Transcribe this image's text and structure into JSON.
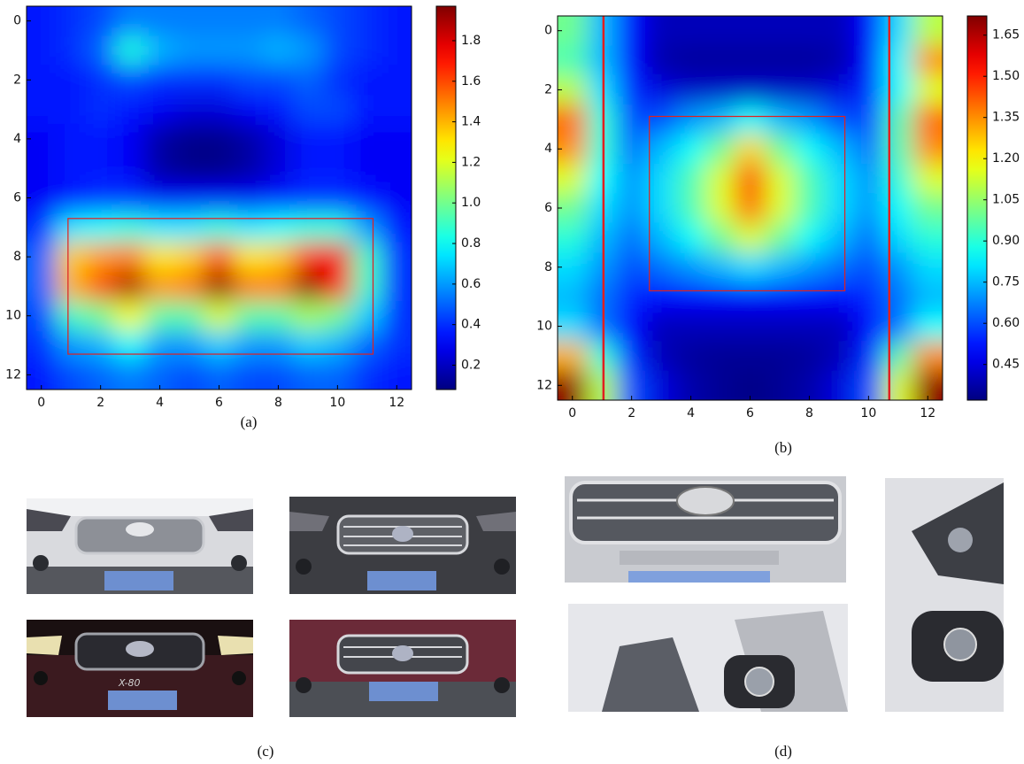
{
  "chart_data": [
    {
      "type": "heatmap",
      "xlim": [
        -0.5,
        12.5
      ],
      "ylim": [
        12.5,
        -0.5
      ],
      "xticks": [
        0,
        2,
        4,
        6,
        8,
        10,
        12
      ],
      "yticks": [
        0,
        2,
        4,
        6,
        8,
        10,
        12
      ],
      "clim": [
        0.08,
        1.97
      ],
      "cticks": [
        0.2,
        0.4,
        0.6,
        0.8,
        {
          "value": 1,
          "label": "1.0"
        },
        1.2,
        1.4,
        1.6,
        1.8
      ],
      "colormap": "jet",
      "annotation_color": "#e02020",
      "boxes": [
        {
          "x": [
            0.9,
            11.2
          ],
          "y": [
            6.7,
            11.3
          ]
        }
      ],
      "lines_x": [],
      "values": [
        [
          0.35,
          0.4,
          0.45,
          0.55,
          0.55,
          0.55,
          0.55,
          0.55,
          0.55,
          0.5,
          0.45,
          0.4,
          0.35
        ],
        [
          0.35,
          0.4,
          0.5,
          0.85,
          0.65,
          0.6,
          0.6,
          0.6,
          0.65,
          0.6,
          0.45,
          0.4,
          0.35
        ],
        [
          0.35,
          0.35,
          0.4,
          0.45,
          0.4,
          0.4,
          0.4,
          0.45,
          0.45,
          0.5,
          0.4,
          0.35,
          0.35
        ],
        [
          0.35,
          0.35,
          0.4,
          0.35,
          0.3,
          0.25,
          0.25,
          0.3,
          0.35,
          0.45,
          0.45,
          0.35,
          0.35
        ],
        [
          0.3,
          0.35,
          0.35,
          0.3,
          0.15,
          0.1,
          0.1,
          0.15,
          0.25,
          0.35,
          0.35,
          0.3,
          0.3
        ],
        [
          0.3,
          0.35,
          0.35,
          0.3,
          0.15,
          0.1,
          0.1,
          0.15,
          0.25,
          0.35,
          0.35,
          0.3,
          0.3
        ],
        [
          0.3,
          0.35,
          0.4,
          0.4,
          0.3,
          0.3,
          0.3,
          0.3,
          0.35,
          0.4,
          0.4,
          0.35,
          0.3
        ],
        [
          0.4,
          0.75,
          0.8,
          0.85,
          0.75,
          0.75,
          0.85,
          0.75,
          0.8,
          0.85,
          0.85,
          0.6,
          0.35
        ],
        [
          0.5,
          1.35,
          1.45,
          1.5,
          1.3,
          1.35,
          1.6,
          1.3,
          1.35,
          1.65,
          1.75,
          0.9,
          0.4
        ],
        [
          0.5,
          1.4,
          1.6,
          1.9,
          1.45,
          1.5,
          1.95,
          1.5,
          1.5,
          1.95,
          1.7,
          0.9,
          0.4
        ],
        [
          0.45,
          0.9,
          1.0,
          1.25,
          0.95,
          0.95,
          1.2,
          0.95,
          0.95,
          1.1,
          1.0,
          0.7,
          0.4
        ],
        [
          0.4,
          0.6,
          0.65,
          0.8,
          0.6,
          0.6,
          0.7,
          0.6,
          0.6,
          0.7,
          0.65,
          0.5,
          0.4
        ],
        [
          0.35,
          0.45,
          0.5,
          0.55,
          0.5,
          0.45,
          0.5,
          0.45,
          0.45,
          0.5,
          0.5,
          0.4,
          0.35
        ]
      ]
    },
    {
      "type": "heatmap",
      "xlim": [
        -0.5,
        12.5
      ],
      "ylim": [
        12.5,
        -0.5
      ],
      "xticks": [
        0,
        2,
        4,
        6,
        8,
        10,
        12
      ],
      "yticks": [
        0,
        2,
        4,
        6,
        8,
        10,
        12
      ],
      "clim": [
        0.32,
        1.72
      ],
      "cticks": [
        0.45,
        {
          "value": 0.6,
          "label": "0.60"
        },
        0.75,
        {
          "value": 0.9,
          "label": "0.90"
        },
        1.05,
        {
          "value": 1.2,
          "label": "1.20"
        },
        1.35,
        {
          "value": 1.5,
          "label": "1.50"
        },
        1.65
      ],
      "colormap": "jet",
      "annotation_color": "#e02020",
      "boxes": [
        {
          "x": [
            2.6,
            9.2
          ],
          "y": [
            2.9,
            8.8
          ]
        }
      ],
      "lines_x": [
        1.05,
        10.7
      ],
      "values": [
        [
          1.0,
          0.75,
          0.5,
          0.4,
          0.4,
          0.4,
          0.4,
          0.4,
          0.4,
          0.4,
          0.5,
          0.8,
          1.1
        ],
        [
          0.95,
          0.75,
          0.5,
          0.38,
          0.36,
          0.36,
          0.36,
          0.36,
          0.36,
          0.38,
          0.5,
          0.85,
          1.35
        ],
        [
          1.1,
          0.8,
          0.55,
          0.45,
          0.42,
          0.42,
          0.42,
          0.42,
          0.42,
          0.45,
          0.55,
          0.85,
          1.15
        ],
        [
          1.4,
          0.9,
          0.6,
          0.6,
          0.7,
          0.75,
          0.85,
          0.75,
          0.7,
          0.6,
          0.6,
          0.95,
          1.4
        ],
        [
          1.35,
          0.9,
          0.65,
          0.75,
          0.85,
          1.0,
          1.25,
          1.0,
          0.85,
          0.75,
          0.65,
          0.95,
          1.35
        ],
        [
          1.15,
          0.85,
          0.7,
          0.8,
          0.95,
          1.15,
          1.45,
          1.15,
          0.95,
          0.8,
          0.7,
          0.9,
          1.15
        ],
        [
          1.0,
          0.8,
          0.7,
          0.8,
          0.95,
          1.15,
          1.4,
          1.15,
          0.95,
          0.8,
          0.7,
          0.85,
          1.0
        ],
        [
          0.9,
          0.75,
          0.65,
          0.75,
          0.85,
          1.0,
          1.15,
          1.0,
          0.85,
          0.75,
          0.65,
          0.8,
          0.9
        ],
        [
          0.8,
          0.7,
          0.6,
          0.65,
          0.7,
          0.75,
          0.8,
          0.75,
          0.7,
          0.65,
          0.6,
          0.7,
          0.8
        ],
        [
          0.75,
          0.65,
          0.55,
          0.5,
          0.5,
          0.5,
          0.5,
          0.5,
          0.5,
          0.5,
          0.55,
          0.65,
          0.75
        ],
        [
          0.8,
          0.65,
          0.5,
          0.4,
          0.4,
          0.4,
          0.4,
          0.4,
          0.4,
          0.4,
          0.5,
          0.65,
          0.85
        ],
        [
          1.3,
          0.9,
          0.55,
          0.4,
          0.36,
          0.35,
          0.35,
          0.35,
          0.36,
          0.4,
          0.55,
          0.95,
          1.35
        ],
        [
          1.7,
          1.1,
          0.6,
          0.45,
          0.38,
          0.35,
          0.33,
          0.35,
          0.38,
          0.45,
          0.6,
          1.15,
          1.7
        ]
      ]
    }
  ],
  "captions": [
    "(a)",
    "(b)",
    "(c)",
    "(d)"
  ],
  "photos": {
    "plate_text": "X-80"
  }
}
